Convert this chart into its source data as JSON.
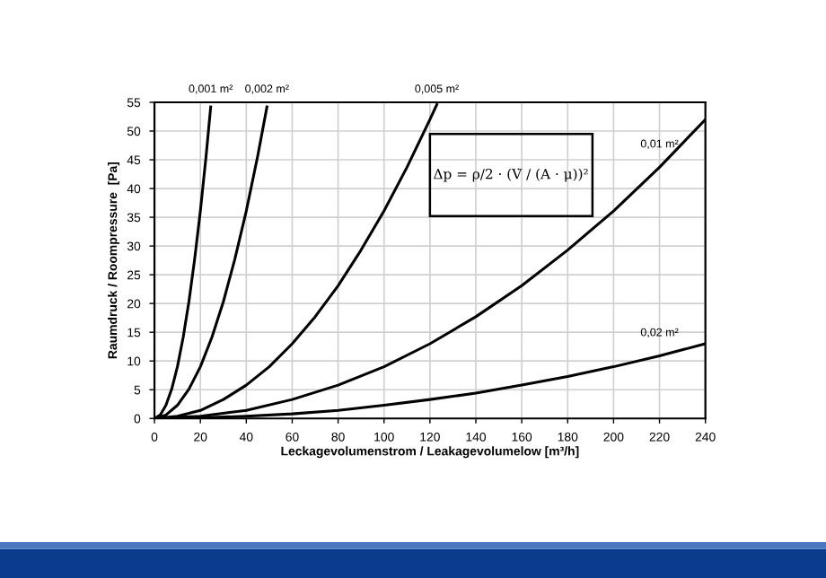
{
  "chart_data": {
    "type": "line",
    "xlabel": "Leckagevolumenstrom / Leakagevolumelow [m³/h]",
    "ylabel": "Raumdruck / Roompressure  [Pa]",
    "series": [
      {
        "name": "0,001 m²",
        "color": "#000000",
        "x": [
          0,
          2.5,
          5,
          7.5,
          10,
          12.5,
          15,
          17.5,
          20,
          22.5,
          24.5
        ],
        "values": [
          0,
          0.6,
          2.3,
          5.1,
          9,
          14.1,
          20.3,
          27.7,
          36.1,
          45.7,
          54.2
        ]
      },
      {
        "name": "0,002 m²",
        "color": "#000000",
        "x": [
          0,
          5,
          10,
          15,
          20,
          25,
          30,
          35,
          40,
          45,
          49
        ],
        "values": [
          0,
          0.6,
          2.3,
          5.1,
          9,
          14.1,
          20.3,
          27.7,
          36.1,
          45.7,
          54.2
        ]
      },
      {
        "name": "0,005 m²",
        "color": "#000000",
        "x": [
          0,
          10,
          20,
          30,
          40,
          50,
          60,
          70,
          80,
          90,
          100,
          110,
          120,
          123
        ],
        "values": [
          0,
          0.4,
          1.4,
          3.3,
          5.8,
          9,
          13,
          17.7,
          23.1,
          29.3,
          36.1,
          43.7,
          52,
          54.6
        ]
      },
      {
        "name": "0,01 m²",
        "color": "#000000",
        "x": [
          0,
          20,
          40,
          60,
          80,
          100,
          120,
          140,
          160,
          180,
          200,
          220,
          240
        ],
        "values": [
          0,
          0.4,
          1.4,
          3.3,
          5.8,
          9,
          13,
          17.7,
          23.1,
          29.3,
          36.1,
          43.7,
          52
        ]
      },
      {
        "name": "0,02 m²",
        "color": "#000000",
        "x": [
          0,
          20,
          40,
          60,
          80,
          100,
          120,
          140,
          160,
          180,
          200,
          220,
          240
        ],
        "values": [
          0,
          0.1,
          0.4,
          0.8,
          1.4,
          2.3,
          3.3,
          4.4,
          5.8,
          7.3,
          9,
          10.9,
          13
        ]
      }
    ],
    "xlim": [
      0,
      240
    ],
    "xticks": [
      0,
      20,
      40,
      60,
      80,
      100,
      120,
      140,
      160,
      180,
      200,
      220,
      240
    ],
    "ylim": [
      0,
      55
    ],
    "yticks": [
      0,
      5,
      10,
      15,
      20,
      25,
      30,
      35,
      40,
      45,
      50,
      55
    ],
    "grid": true,
    "marker": "none",
    "line_style": "solid",
    "annotations": [
      "Δp = ρ/2 · (V̇ / (A · μ))²"
    ]
  }
}
